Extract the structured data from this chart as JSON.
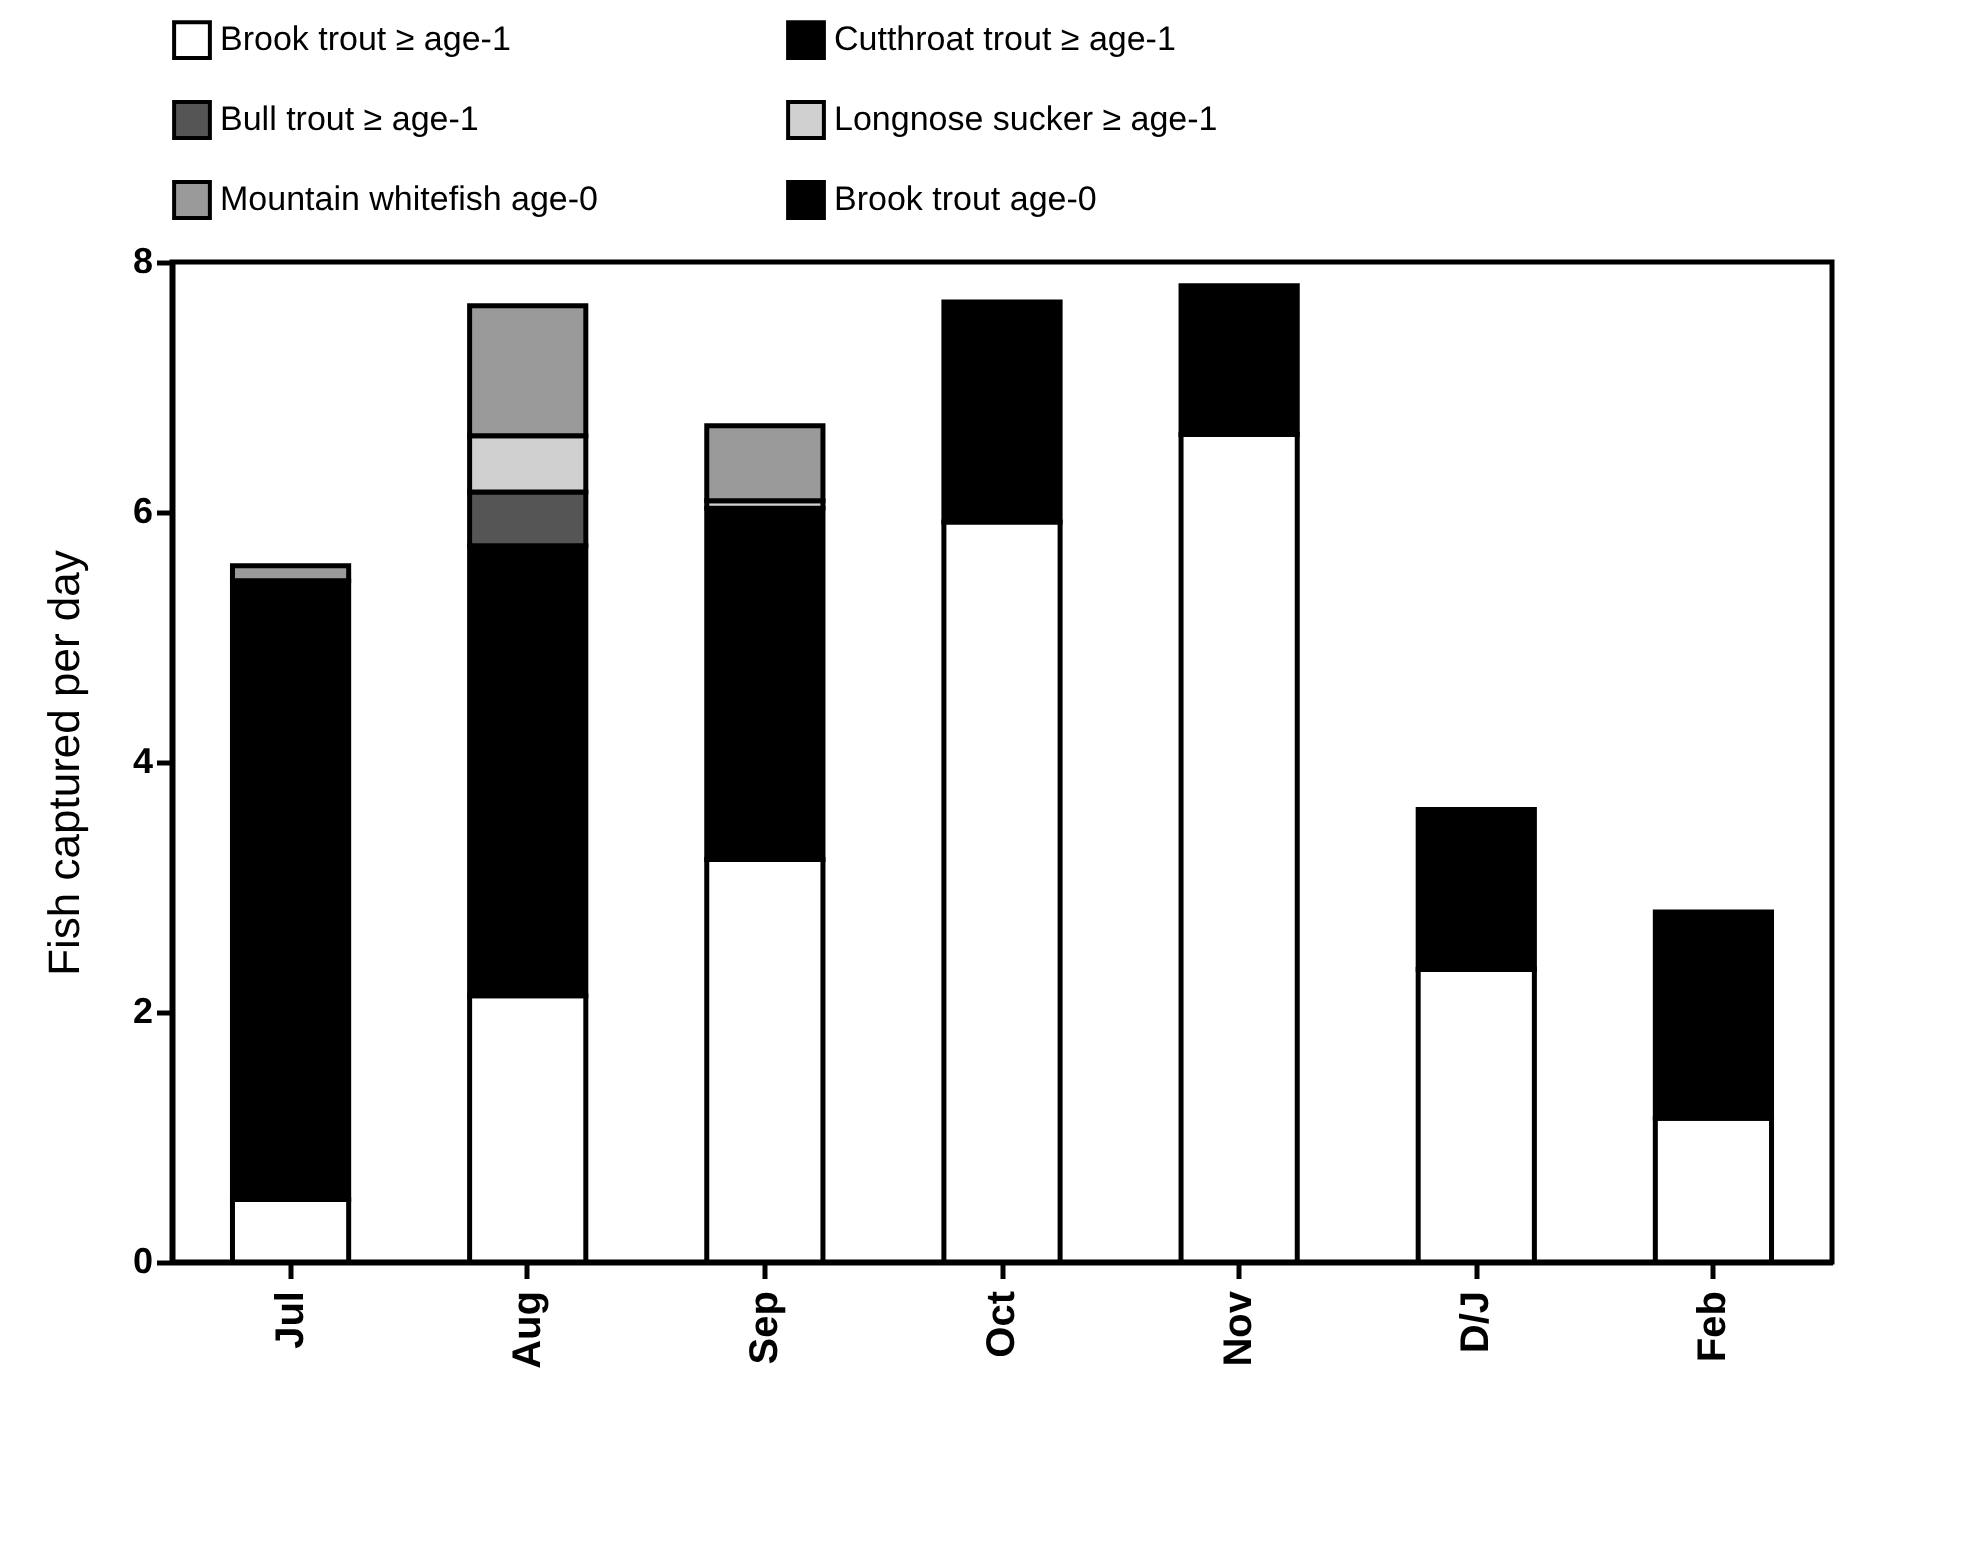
{
  "chart_data": {
    "type": "bar",
    "stacked": true,
    "ylabel": "Fish captured per day",
    "categories": [
      "Jul",
      "Aug",
      "Sep",
      "Oct",
      "Nov",
      "D/J",
      "Feb"
    ],
    "series": [
      {
        "name": "Brook trout ≥  age-1",
        "color": "#ffffff",
        "values": [
          0.5,
          2.13,
          3.22,
          5.92,
          6.62,
          2.34,
          1.15
        ]
      },
      {
        "name": "Cutthroat trout ≥ age-1",
        "color": "#000000",
        "values": [
          4.95,
          3.6,
          2.81,
          null,
          null,
          null,
          null
        ]
      },
      {
        "name": "Bull trout ≥ age-1",
        "color": "#555555",
        "values": [
          null,
          0.43,
          null,
          null,
          null,
          null,
          null
        ]
      },
      {
        "name": "Longnose sucker ≥ age-1",
        "color": "#d0d0d0",
        "values": [
          null,
          0.45,
          0.06,
          null,
          null,
          null,
          null
        ]
      },
      {
        "name": "Mountain whitefish age-0",
        "color": "#9a9a9a",
        "values": [
          0.12,
          1.04,
          0.6,
          null,
          null,
          null,
          null
        ]
      },
      {
        "name": "Brook trout age-0",
        "color": "#000000",
        "values": [
          null,
          null,
          null,
          1.76,
          1.19,
          1.28,
          1.65
        ]
      }
    ],
    "ylim": [
      0,
      8
    ],
    "yticks": [
      0,
      2,
      4,
      6,
      8
    ],
    "grid": false,
    "legend": "top"
  }
}
